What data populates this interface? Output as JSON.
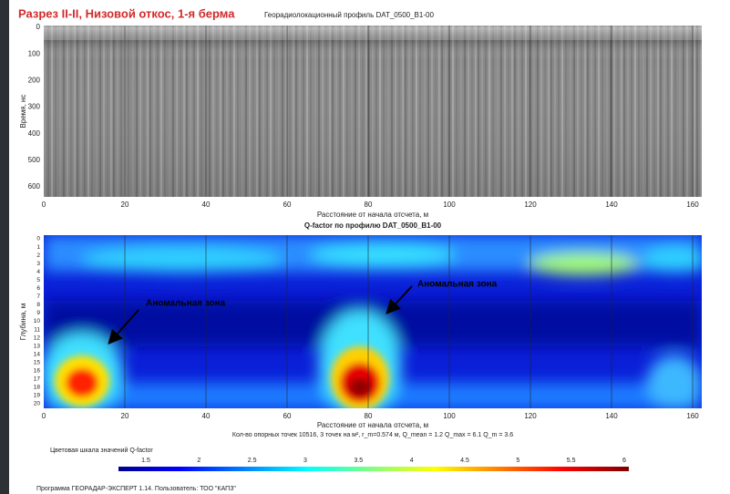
{
  "header": {
    "title": "Разрез II-II, Низовой откос, 1-я берма"
  },
  "radargram": {
    "title": "Георадиолокационный профиль  DAT_0500_B1-00",
    "y_label": "Время, нс",
    "x_label": "Расстояние от начала отсчета, м",
    "yticks": [
      "0",
      "100",
      "200",
      "300",
      "400",
      "500",
      "600"
    ],
    "xticks": [
      "0",
      "20",
      "40",
      "60",
      "80",
      "100",
      "120",
      "140",
      "160"
    ]
  },
  "qfactor": {
    "title": "Q-factor по профилю DAT_0500_B1-00",
    "y_label": "Глубина, м",
    "x_label": "Расстояние от начала отсчета, м",
    "yticks": [
      "0",
      "1",
      "2",
      "3",
      "4",
      "5",
      "6",
      "7",
      "8",
      "9",
      "10",
      "11",
      "12",
      "13",
      "14",
      "15",
      "16",
      "17",
      "18",
      "19",
      "20"
    ],
    "xticks": [
      "0",
      "20",
      "40",
      "60",
      "80",
      "100",
      "120",
      "140",
      "160"
    ],
    "annotations": [
      "Аномальная зона",
      "Аномальная зона"
    ],
    "stats": "Кол-во опорных точек 10516, 3 точек на м², r_m=0.574 м,  Q_mean = 1.2   Q_max = 6.1   Q_m = 3.6"
  },
  "colorbar": {
    "title": "Цветовая шкала значений Q-factor",
    "ticks": [
      "1.5",
      "2",
      "2.5",
      "3",
      "3.5",
      "4",
      "4.5",
      "5",
      "5.5",
      "6"
    ]
  },
  "footer": "Программа ГЕОРАДАР-ЭКСПЕРТ 1.14. Пользователь: ТОО \"КАПЗ\""
}
